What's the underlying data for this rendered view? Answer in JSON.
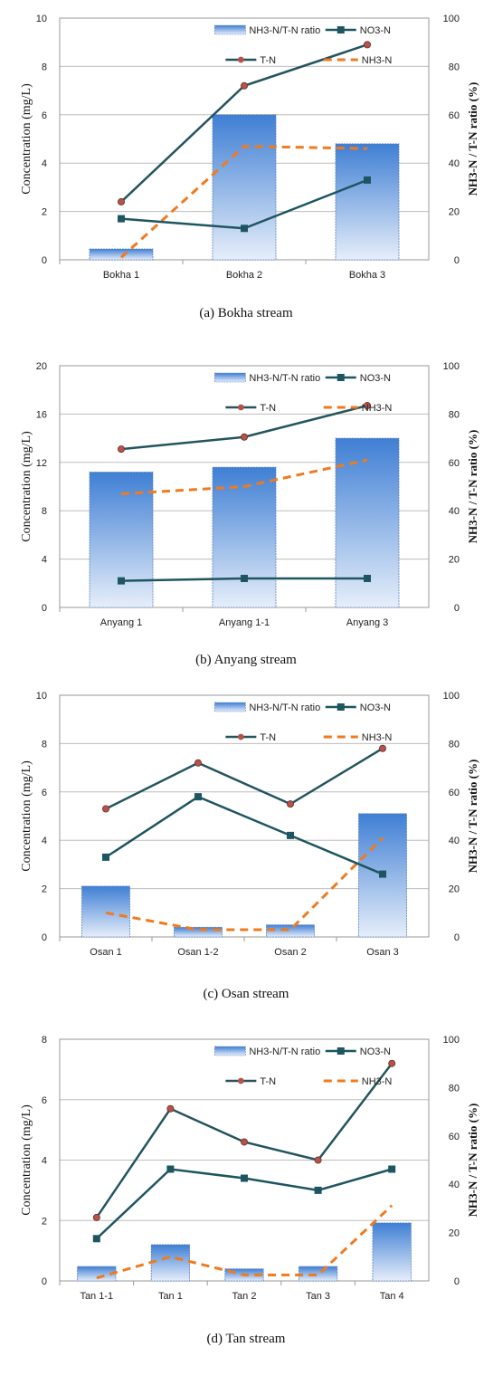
{
  "colors": {
    "tn_line": "#24545e",
    "tn_marker": "#b5524a",
    "no3_line": "#1d5560",
    "nh3_line": "#f07a1e",
    "bar_top": "#3f7fd4",
    "bar_bottom": "#e6eefa",
    "grid": "#bdbdbd",
    "frame": "#9a9a9a"
  },
  "chart_data": [
    {
      "type": "bar",
      "caption": "(a)  Bokha  stream",
      "categories": [
        "Bokha 1",
        "Bokha 2",
        "Bokha 3"
      ],
      "ylabel": "Concentration (mg/L)",
      "y2label": "NH3-N / T-N ratio (%)",
      "ylim": [
        0,
        10
      ],
      "yticks": [
        "0",
        "2",
        "4",
        "6",
        "8",
        "10"
      ],
      "y2lim": [
        0,
        100
      ],
      "y2ticks": [
        "0",
        "20",
        "40",
        "60",
        "80",
        "100"
      ],
      "legend": [
        "NH3-N/T-N ratio",
        "NO3-N",
        "T-N",
        "NH3-N"
      ],
      "ratio": [
        4.5,
        60,
        48
      ],
      "tn": [
        2.4,
        7.2,
        8.9
      ],
      "no3": [
        1.7,
        1.3,
        3.3
      ],
      "nh3": [
        0.1,
        4.7,
        4.6
      ]
    },
    {
      "type": "bar",
      "caption": "(b)  Anyang  stream",
      "categories": [
        "Anyang 1",
        "Anyang 1-1",
        "Anyang 3"
      ],
      "ylabel": "Concentration (mg/L)",
      "y2label": "NH3-N / T-N ratio (%)",
      "ylim": [
        0,
        20
      ],
      "yticks": [
        "0",
        "4",
        "8",
        "12",
        "16",
        "20"
      ],
      "y2lim": [
        0,
        100
      ],
      "y2ticks": [
        "0",
        "20",
        "40",
        "60",
        "80",
        "100"
      ],
      "legend": [
        "NH3-N/T-N ratio",
        "NO3-N",
        "T-N",
        "NH3-N"
      ],
      "ratio": [
        56,
        58,
        70
      ],
      "tn": [
        13.1,
        14.1,
        16.7
      ],
      "no3": [
        2.2,
        2.4,
        2.4
      ],
      "nh3": [
        9.4,
        10.0,
        12.2
      ]
    },
    {
      "type": "bar",
      "caption": "(c)  Osan  stream",
      "categories": [
        "Osan 1",
        "Osan 1-2",
        "Osan 2",
        "Osan 3"
      ],
      "ylabel": "Concentration (mg/L)",
      "y2label": "NH3-N / T-N ratio (%)",
      "ylim": [
        0,
        10
      ],
      "yticks": [
        "0",
        "2",
        "4",
        "6",
        "8",
        "10"
      ],
      "y2lim": [
        0,
        100
      ],
      "y2ticks": [
        "0",
        "20",
        "40",
        "60",
        "80",
        "100"
      ],
      "legend": [
        "NH3-N/T-N ratio",
        "NO3-N",
        "T-N",
        "NH3-N"
      ],
      "ratio": [
        21,
        4,
        5,
        51
      ],
      "tn": [
        5.3,
        7.2,
        5.5,
        7.8
      ],
      "no3": [
        3.3,
        5.8,
        4.2,
        2.6
      ],
      "nh3": [
        1.0,
        0.3,
        0.3,
        4.1
      ]
    },
    {
      "type": "bar",
      "caption": "(d)  Tan  stream",
      "categories": [
        "Tan 1-1",
        "Tan 1",
        "Tan 2",
        "Tan 3",
        "Tan 4"
      ],
      "ylabel": "Concentration (mg/L)",
      "y2label": "NH3-N / T-N ratio (%)",
      "ylim": [
        0,
        8
      ],
      "yticks": [
        "0",
        "2",
        "4",
        "6",
        "8"
      ],
      "y2lim": [
        0,
        100
      ],
      "y2ticks": [
        "0",
        "20",
        "40",
        "60",
        "80",
        "100"
      ],
      "legend": [
        "NH3-N/T-N ratio",
        "NO3-N",
        "T-N",
        "NH3-N"
      ],
      "ratio": [
        6,
        15,
        5,
        6,
        24
      ],
      "tn": [
        2.1,
        5.7,
        4.6,
        4.0,
        7.2
      ],
      "no3": [
        1.4,
        3.7,
        3.4,
        3.0,
        3.7
      ],
      "nh3": [
        0.1,
        0.8,
        0.2,
        0.2,
        2.5
      ]
    }
  ]
}
